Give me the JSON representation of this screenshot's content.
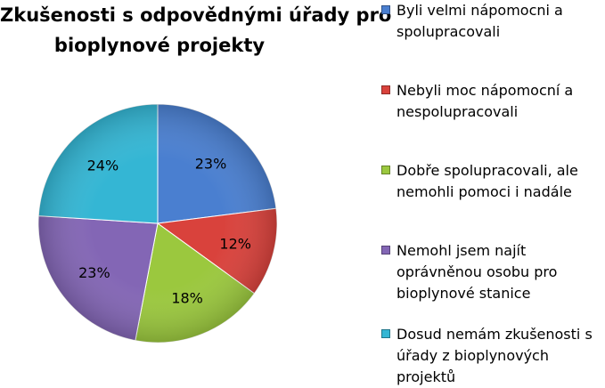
{
  "chart_data": {
    "type": "pie",
    "title_lines": [
      "Zkušenosti s odpovědnými úřady pro",
      "bioplynové projekty"
    ],
    "slices": [
      {
        "label_lines": [
          "Byli velmi nápomocni a",
          "spolupracovali"
        ],
        "value": 23,
        "value_label": "23%",
        "color": "#4a7fd0"
      },
      {
        "label_lines": [
          "Nebyli moc nápomocní a",
          "nespolupracovali"
        ],
        "value": 12,
        "value_label": "12%",
        "color": "#d9423c"
      },
      {
        "label_lines": [
          "Dobře spolupracovali, ale",
          "nemohli pomoci i nadále"
        ],
        "value": 18,
        "value_label": "18%",
        "color": "#9bc83e"
      },
      {
        "label_lines": [
          "Nemohl jsem najít",
          "oprávněnou osobu pro",
          "bioplynové stanice"
        ],
        "value": 23,
        "value_label": "23%",
        "color": "#8366b5"
      },
      {
        "label_lines": [
          "Dosud nemám zkušenosti s",
          "úřady z bioplynových",
          "projektů"
        ],
        "value": 24,
        "value_label": "24%",
        "color": "#34b6d4"
      }
    ],
    "legend_position": "right"
  }
}
